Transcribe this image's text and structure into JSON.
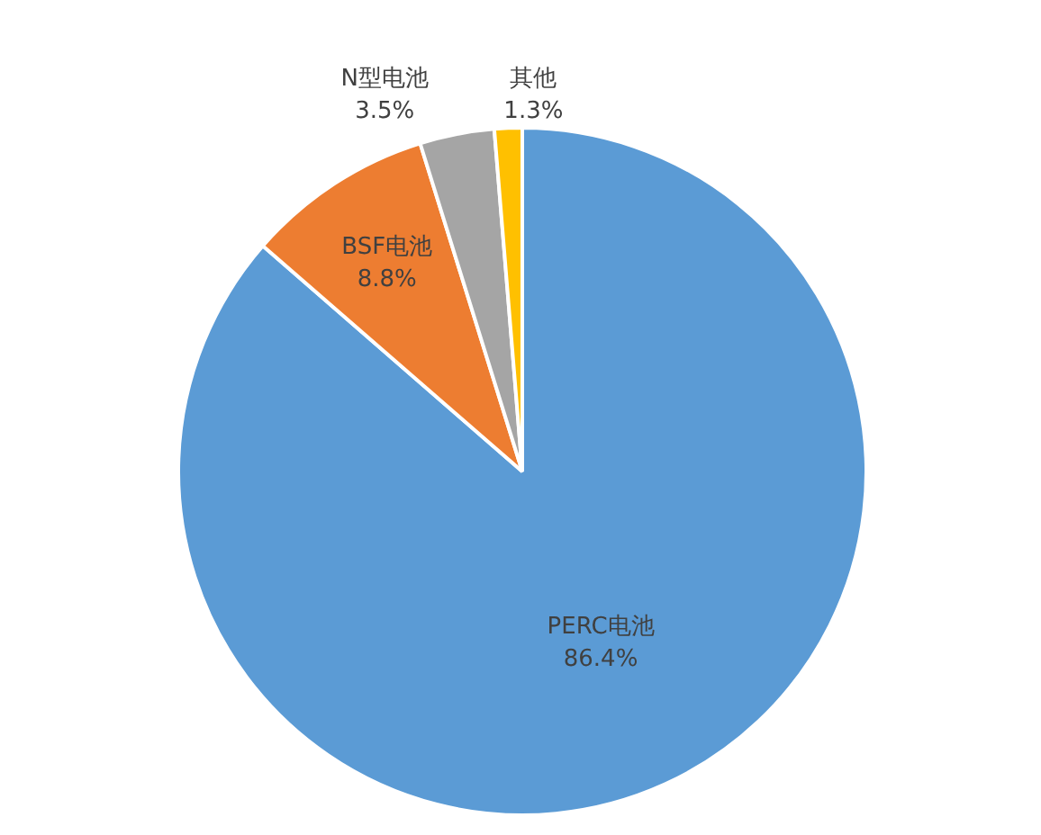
{
  "chart_data": {
    "type": "pie",
    "categories": [
      "PERC电池",
      "BSF电池",
      "N型电池",
      "其他"
    ],
    "values": [
      86.4,
      8.8,
      3.5,
      1.3
    ],
    "value_labels": [
      "86.4%",
      "8.8%",
      "3.5%",
      "1.3%"
    ],
    "colors": [
      "#5b9bd5",
      "#ed7d31",
      "#a5a5a5",
      "#ffc000"
    ],
    "legend": false
  }
}
